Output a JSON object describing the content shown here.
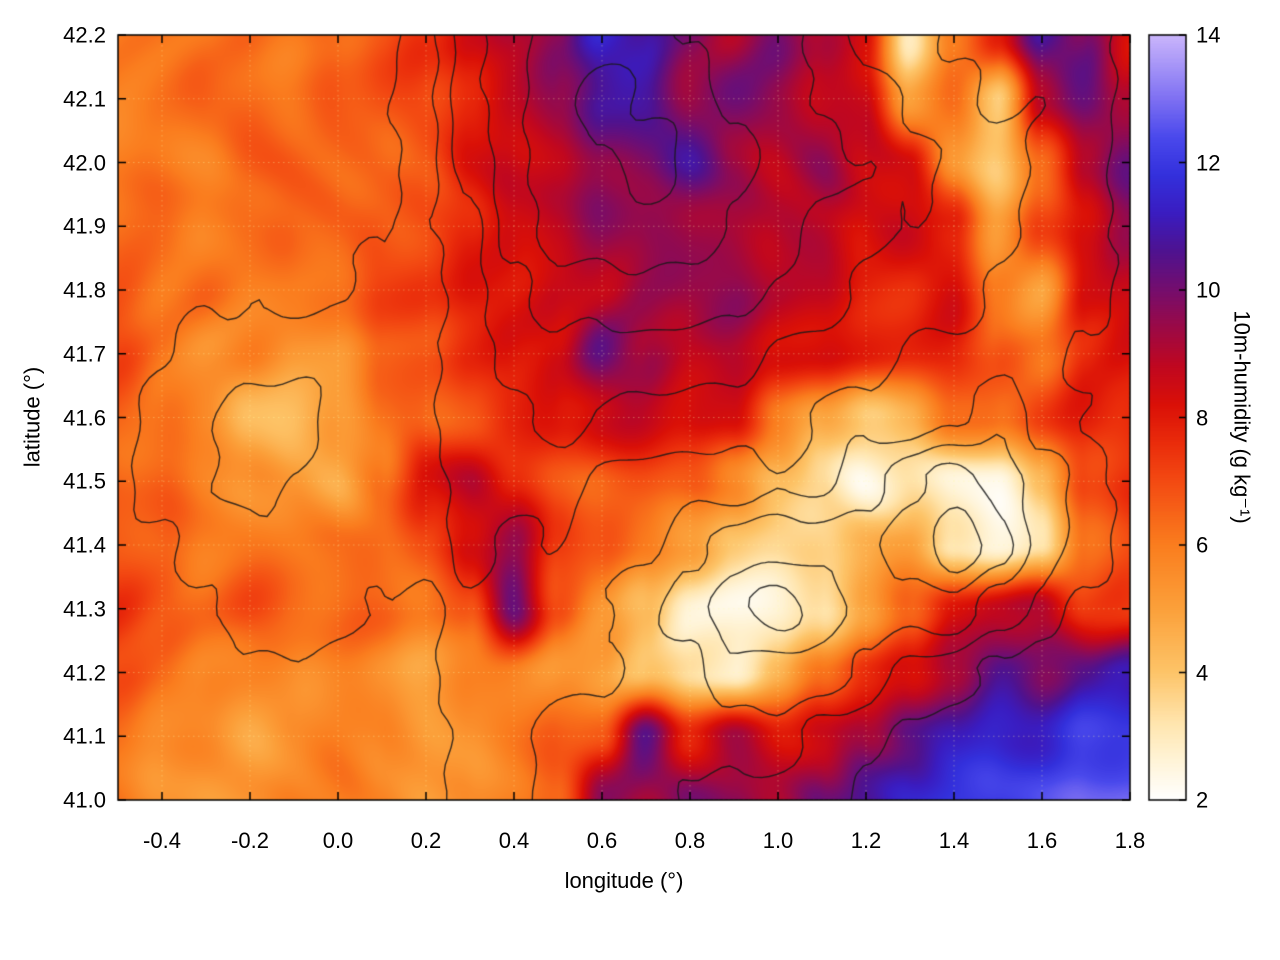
{
  "chart_data": {
    "type": "heatmap",
    "title": "",
    "xlabel": "longitude (°)",
    "ylabel": "latitude (°)",
    "colorbar_label": "10m-humidity (g kg⁻¹)",
    "xlim": [
      -0.5,
      1.8
    ],
    "ylim": [
      41.0,
      42.2
    ],
    "x_ticks": [
      -0.4,
      -0.2,
      0.0,
      0.2,
      0.4,
      0.6,
      0.8,
      1.0,
      1.2,
      1.4,
      1.6,
      1.8
    ],
    "x_tick_labels": [
      "-0.4",
      "-0.2",
      "0.0",
      "0.2",
      "0.4",
      "0.6",
      "0.8",
      "1.0",
      "1.2",
      "1.4",
      "1.6",
      "1.8"
    ],
    "y_ticks": [
      41.0,
      41.1,
      41.2,
      41.3,
      41.4,
      41.5,
      41.6,
      41.7,
      41.8,
      41.9,
      42.0,
      42.1,
      42.2
    ],
    "y_tick_labels": [
      "41.0",
      "41.1",
      "41.2",
      "41.3",
      "41.4",
      "41.5",
      "41.6",
      "41.7",
      "41.8",
      "41.9",
      "42.0",
      "42.1",
      "42.2"
    ],
    "colorbar": {
      "range": [
        2,
        14
      ],
      "ticks": [
        2,
        4,
        6,
        8,
        10,
        12,
        14
      ],
      "tick_labels": [
        "2",
        "4",
        "6",
        "8",
        "10",
        "12",
        "14"
      ]
    },
    "border_color": "#000000",
    "grid_line_color": "rgba(255,255,170,0.35)",
    "colormap_stops": [
      {
        "v": 2.0,
        "c": "#ffffff"
      },
      {
        "v": 2.6,
        "c": "#fff4d8"
      },
      {
        "v": 3.2,
        "c": "#ffe5ae"
      },
      {
        "v": 4.0,
        "c": "#fdc468"
      },
      {
        "v": 5.0,
        "c": "#fba03a"
      },
      {
        "v": 6.0,
        "c": "#fa7d1e"
      },
      {
        "v": 7.0,
        "c": "#f34a12"
      },
      {
        "v": 7.6,
        "c": "#ea2c0b"
      },
      {
        "v": 8.2,
        "c": "#da1007"
      },
      {
        "v": 8.8,
        "c": "#c00720"
      },
      {
        "v": 9.4,
        "c": "#9c0945"
      },
      {
        "v": 10.0,
        "c": "#750d6d"
      },
      {
        "v": 10.6,
        "c": "#4f128f"
      },
      {
        "v": 11.2,
        "c": "#3a1cc0"
      },
      {
        "v": 11.8,
        "c": "#3330dc"
      },
      {
        "v": 12.4,
        "c": "#4a49ec"
      },
      {
        "v": 13.0,
        "c": "#7e70f2"
      },
      {
        "v": 13.5,
        "c": "#a493f7"
      },
      {
        "v": 14.0,
        "c": "#cab5fb"
      }
    ],
    "grid": {
      "lon_start": -0.5,
      "lon_step": 0.1,
      "lat_start": 42.2,
      "lat_step": -0.1,
      "values": [
        [
          6,
          6,
          6,
          6.5,
          6,
          6.5,
          7,
          7.5,
          8.5,
          9,
          9.5,
          11.5,
          11,
          10,
          9,
          10,
          9,
          8,
          3,
          6,
          8,
          11,
          10,
          8
        ],
        [
          6,
          6,
          6.5,
          6.5,
          6,
          6.5,
          7,
          7,
          8,
          8.5,
          9.5,
          10.5,
          11,
          9.5,
          10,
          9.5,
          9,
          8.5,
          5,
          6,
          4,
          9,
          10.5,
          9
        ],
        [
          6,
          6,
          6,
          6.5,
          6.5,
          6.5,
          6.5,
          7,
          8,
          8.5,
          9,
          9.5,
          10,
          10.5,
          9.5,
          9,
          9.5,
          8.5,
          8,
          5.5,
          4,
          6,
          9,
          10
        ],
        [
          6.5,
          6.5,
          6,
          6,
          6.5,
          6.5,
          7,
          7,
          7.5,
          8.5,
          9,
          9.5,
          9.5,
          9,
          9.5,
          9,
          9,
          8,
          8.5,
          8,
          5,
          7,
          8.5,
          9.5
        ],
        [
          6.5,
          6,
          6.5,
          6,
          6,
          6.5,
          7,
          7.5,
          8,
          8,
          8.5,
          9,
          9.5,
          9.5,
          9.5,
          9,
          8.5,
          8,
          7.5,
          8.5,
          6,
          5,
          8,
          8.5
        ],
        [
          7,
          6,
          5.5,
          6,
          5,
          5.5,
          6.5,
          7,
          7.5,
          8,
          8.5,
          10.5,
          9.5,
          8.5,
          9,
          8.5,
          8,
          8,
          7.5,
          8,
          7,
          6,
          7.5,
          8
        ],
        [
          6.5,
          6,
          5.5,
          4.5,
          4,
          5,
          6,
          6.5,
          7,
          7.5,
          8,
          8.5,
          9,
          8.5,
          8,
          6,
          5,
          4,
          4.5,
          6,
          6.5,
          7.5,
          8,
          7.5
        ],
        [
          6.5,
          6.5,
          6,
          5.5,
          5,
          4.5,
          6,
          8.5,
          9,
          7.5,
          7,
          6.5,
          7,
          6.5,
          5.5,
          4.5,
          3.5,
          2.5,
          3,
          2.5,
          2.5,
          4,
          7,
          7.5
        ],
        [
          7,
          6.5,
          6,
          6,
          6,
          6,
          6.5,
          7,
          8.5,
          9.5,
          7.5,
          6.5,
          6,
          5,
          4,
          3.5,
          4,
          4.5,
          5,
          3,
          2.5,
          3,
          6.5,
          7
        ],
        [
          7.5,
          7,
          6.5,
          7,
          6.5,
          6.5,
          6.5,
          6,
          6.5,
          10.5,
          7,
          5.5,
          4,
          2.5,
          2.5,
          2.5,
          3,
          5,
          6.5,
          8.5,
          8.5,
          9,
          7,
          7.5
        ],
        [
          7,
          6.5,
          6,
          5.5,
          5.5,
          6,
          5.5,
          5,
          5.5,
          6,
          5.5,
          5,
          4,
          3,
          3,
          4.5,
          6,
          7.5,
          8,
          9.5,
          10.5,
          9.5,
          10.5,
          11
        ],
        [
          6,
          5.5,
          5.5,
          5,
          5.5,
          6,
          5.5,
          5,
          5.5,
          6,
          6.5,
          7,
          10.5,
          8,
          9,
          8,
          8.5,
          9.5,
          10.5,
          11,
          11.5,
          11.5,
          12,
          12
        ],
        [
          6,
          5.5,
          5,
          5.5,
          6,
          6,
          5.5,
          5,
          5.5,
          6,
          6.5,
          10,
          9,
          10,
          9.5,
          9,
          10,
          11,
          11.5,
          12,
          12,
          12.5,
          12.5,
          13
        ]
      ]
    },
    "contours": {
      "line_color": "rgba(25,25,25,0.85)",
      "levels": [
        2.5,
        3.5,
        4.5,
        5.5,
        6.5,
        7.5
      ],
      "values": [
        [
          1.2,
          1.0,
          1.1,
          1.3,
          1.0,
          2.2,
          2.0,
          3.2,
          5.1,
          6.2,
          7.3,
          7.1,
          7.2,
          6.4,
          6.1,
          6.3,
          5.2,
          4.1,
          4.2,
          3.3,
          3.1,
          3.2,
          3.0,
          2.1
        ],
        [
          1.0,
          1.2,
          1.1,
          1.4,
          2.1,
          2.0,
          2.3,
          3.4,
          5.2,
          6.3,
          7.2,
          8.1,
          7.4,
          7.1,
          6.2,
          6.4,
          5.3,
          5.1,
          4.3,
          4.0,
          3.2,
          3.4,
          3.1,
          2.2
        ],
        [
          1.1,
          1.0,
          1.3,
          2.2,
          2.0,
          2.4,
          2.1,
          3.1,
          5.0,
          6.1,
          7.4,
          7.2,
          8.2,
          7.3,
          7.0,
          6.2,
          6.0,
          5.4,
          5.0,
          4.2,
          4.1,
          3.3,
          3.2,
          2.0
        ],
        [
          1.3,
          1.1,
          2.0,
          2.3,
          2.2,
          2.1,
          2.4,
          3.3,
          4.2,
          6.0,
          7.1,
          7.3,
          7.0,
          7.2,
          6.3,
          6.1,
          5.2,
          5.0,
          4.4,
          4.1,
          4.0,
          3.1,
          3.0,
          2.3
        ],
        [
          2.1,
          2.0,
          2.2,
          2.4,
          2.1,
          2.3,
          3.0,
          3.2,
          4.1,
          5.2,
          6.2,
          6.0,
          6.3,
          6.1,
          6.0,
          5.3,
          5.1,
          4.2,
          4.0,
          4.3,
          3.2,
          3.0,
          3.1,
          2.1
        ],
        [
          2.2,
          2.4,
          3.1,
          3.0,
          3.3,
          3.1,
          3.2,
          3.4,
          4.0,
          5.1,
          5.3,
          5.0,
          5.2,
          5.1,
          5.0,
          4.4,
          4.1,
          4.0,
          3.3,
          3.1,
          3.2,
          3.0,
          2.2,
          2.0
        ],
        [
          2.0,
          3.2,
          3.4,
          4.1,
          4.0,
          3.2,
          3.0,
          3.3,
          4.2,
          4.0,
          5.1,
          4.3,
          4.1,
          4.2,
          4.0,
          4.1,
          3.4,
          3.2,
          3.0,
          3.4,
          4.2,
          3.1,
          2.4,
          2.1
        ],
        [
          2.3,
          3.0,
          3.3,
          4.0,
          3.4,
          3.2,
          3.1,
          3.0,
          4.1,
          4.2,
          4.0,
          3.3,
          3.1,
          3.2,
          3.0,
          3.4,
          3.2,
          4.1,
          5.2,
          6.1,
          5.0,
          4.2,
          3.0,
          2.2
        ],
        [
          2.1,
          2.3,
          3.1,
          3.2,
          3.0,
          3.3,
          3.2,
          3.1,
          4.0,
          3.2,
          3.4,
          3.0,
          3.3,
          4.1,
          5.0,
          5.2,
          5.1,
          5.3,
          6.0,
          7.2,
          6.1,
          4.0,
          3.2,
          2.0
        ],
        [
          2.0,
          2.2,
          2.4,
          3.1,
          3.2,
          3.0,
          2.3,
          2.1,
          3.2,
          3.0,
          3.1,
          3.4,
          4.2,
          5.1,
          6.2,
          7.1,
          6.0,
          5.2,
          5.0,
          5.1,
          4.0,
          3.2,
          2.1,
          2.2
        ],
        [
          1.2,
          2.1,
          2.0,
          2.2,
          2.4,
          2.1,
          2.0,
          2.3,
          3.1,
          3.0,
          3.2,
          3.3,
          4.0,
          4.2,
          5.1,
          5.0,
          5.2,
          4.1,
          3.2,
          3.0,
          2.2,
          2.0,
          2.1,
          1.3
        ],
        [
          1.0,
          1.3,
          2.2,
          2.0,
          2.1,
          2.3,
          2.2,
          2.0,
          3.0,
          3.2,
          4.1,
          4.0,
          4.2,
          4.1,
          4.0,
          4.2,
          3.1,
          3.0,
          2.2,
          2.1,
          2.0,
          1.2,
          1.1,
          1.0
        ],
        [
          1.1,
          1.0,
          1.2,
          2.1,
          2.0,
          2.2,
          2.1,
          2.3,
          3.1,
          3.0,
          4.0,
          4.1,
          4.0,
          3.2,
          3.1,
          3.0,
          3.2,
          2.2,
          2.0,
          1.1,
          1.0,
          1.2,
          1.1,
          1.2
        ]
      ]
    }
  }
}
